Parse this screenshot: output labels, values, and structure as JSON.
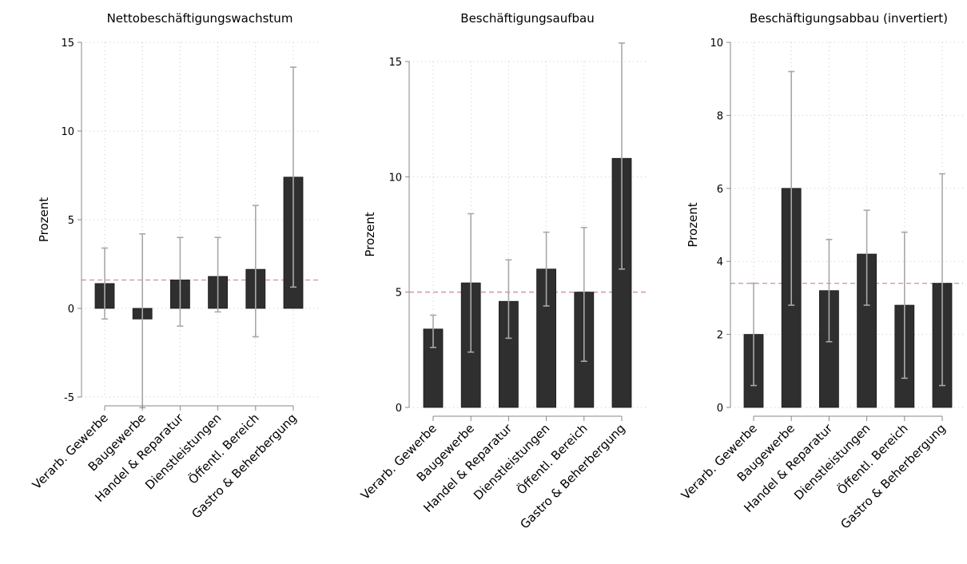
{
  "colors": {
    "bar_fill": "#2f2f2f",
    "error_bar": "#a8a8a8",
    "reference_line": "#d08ea8",
    "grid": "#c8c8c8",
    "axis": "#888888"
  },
  "chart_data": [
    {
      "type": "bar",
      "title": "Nettobeschäftigungswachstum",
      "ylabel": "Prozent",
      "categories": [
        "Verarb. Gewerbe",
        "Baugewerbe",
        "Handel & Reparatur",
        "Dienstleistungen",
        "Öffentl. Bereich",
        "Gastro & Beherbergung"
      ],
      "values": [
        1.4,
        -0.6,
        1.6,
        1.8,
        2.2,
        7.4
      ],
      "ci_low": [
        -0.6,
        -5.6,
        -1.0,
        -0.2,
        -1.6,
        1.2
      ],
      "ci_high": [
        3.4,
        4.2,
        4.0,
        4.0,
        5.8,
        13.6
      ],
      "reference_line": 1.6,
      "ylim": [
        -5.6,
        15.3
      ],
      "yticks": [
        -5,
        0,
        5,
        10,
        15
      ],
      "ytick_labels": [
        "-5",
        "0",
        "5",
        "10",
        "15"
      ],
      "grid": true
    },
    {
      "type": "bar",
      "title": "Beschäftigungsaufbau",
      "ylabel": "Prozent",
      "categories": [
        "Verarb. Gewerbe",
        "Baugewerbe",
        "Handel & Reparatur",
        "Dienstleistungen",
        "Öffentl. Bereich",
        "Gastro & Beherbergung"
      ],
      "values": [
        3.4,
        5.4,
        4.6,
        6.0,
        5.0,
        10.8
      ],
      "ci_low": [
        2.6,
        2.4,
        3.0,
        4.4,
        2.0,
        6.0
      ],
      "ci_high": [
        4.0,
        8.4,
        6.4,
        7.6,
        7.8,
        15.8
      ],
      "reference_line": 5.0,
      "ylim": [
        0,
        16.2
      ],
      "yticks": [
        0,
        5,
        10,
        15
      ],
      "ytick_labels": [
        "0",
        "5",
        "10",
        "15"
      ],
      "grid": true
    },
    {
      "type": "bar",
      "title": "Beschäftigungsabbau (invertiert)",
      "ylabel": "Prozent",
      "categories": [
        "Verarb. Gewerbe",
        "Baugewerbe",
        "Handel & Reparatur",
        "Dienstleistungen",
        "Öffentl. Bereich",
        "Gastro & Beherbergung"
      ],
      "values": [
        2.0,
        6.0,
        3.2,
        4.2,
        2.8,
        3.4
      ],
      "ci_low": [
        0.6,
        2.8,
        1.8,
        2.8,
        0.8,
        0.6
      ],
      "ci_high": [
        3.4,
        9.2,
        4.6,
        5.4,
        4.8,
        6.4
      ],
      "reference_line": 3.4,
      "ylim": [
        0,
        10
      ],
      "yticks": [
        0,
        2,
        4,
        6,
        8,
        10
      ],
      "ytick_labels": [
        "0",
        "2",
        "4",
        "6",
        "8",
        "10"
      ],
      "grid": true
    }
  ]
}
